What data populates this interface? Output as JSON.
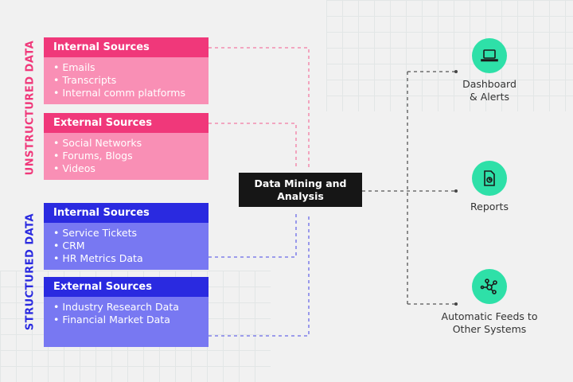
{
  "unstructured": {
    "label": "UNSTRUCTURED DATA",
    "color": "#f0387a",
    "internal": {
      "title": "Internal Sources",
      "items": [
        "Emails",
        "Transcripts",
        "Internal comm platforms"
      ]
    },
    "external": {
      "title": "External Sources",
      "items": [
        "Social Networks",
        "Forums, Blogs",
        "Videos"
      ]
    }
  },
  "structured": {
    "label": "STRUCTURED DATA",
    "color": "#2a2ae0",
    "internal": {
      "title": "Internal Sources",
      "items": [
        "Service Tickets",
        "CRM",
        "HR Metrics Data"
      ]
    },
    "external": {
      "title": "External Sources",
      "items": [
        "Industry Research Data",
        "Financial Market Data"
      ]
    }
  },
  "center": {
    "line1": "Data Mining and",
    "line2": "Analysis"
  },
  "outputs": [
    {
      "line1": "Dashboard",
      "line2": "& Alerts",
      "icon": "laptop-icon"
    },
    {
      "line1": "Reports",
      "line2": "",
      "icon": "report-icon"
    },
    {
      "line1": "Automatic Feeds to",
      "line2": "Other Systems",
      "icon": "network-icon"
    }
  ],
  "accent": "#2ee0a8"
}
